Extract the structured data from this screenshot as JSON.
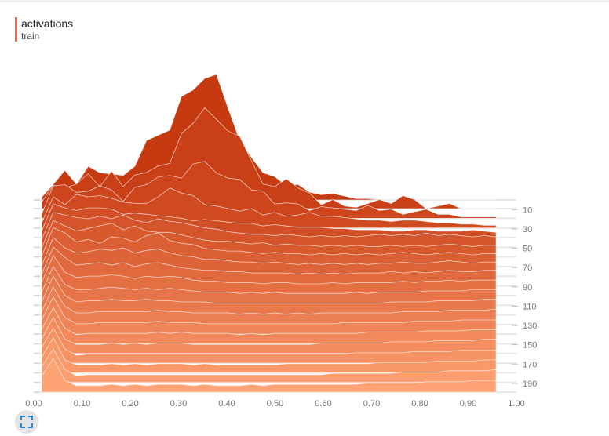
{
  "legend": {
    "title": "activations",
    "subtitle": "train"
  },
  "controls": {
    "fullscreen_icon": "fullscreen-icon"
  },
  "colors": {
    "legend_bar": "#f4623a",
    "front": "#ffa374",
    "back": "#c63a12",
    "axis_text": "#757575"
  },
  "chart_data": {
    "type": "area",
    "subtype": "histogram-offset",
    "x_ticks": [
      "0.00",
      "0.10",
      "0.20",
      "0.30",
      "0.40",
      "0.50",
      "0.60",
      "0.70",
      "0.80",
      "0.90",
      "1.00"
    ],
    "xlim": [
      0,
      1
    ],
    "step_ticks": [
      "10",
      "30",
      "50",
      "70",
      "90",
      "110",
      "130",
      "150",
      "170",
      "190"
    ],
    "step_range": [
      0,
      199
    ],
    "x": [
      0.0,
      0.025,
      0.05,
      0.075,
      0.1,
      0.125,
      0.15,
      0.175,
      0.2,
      0.225,
      0.25,
      0.275,
      0.3,
      0.325,
      0.35,
      0.375,
      0.4,
      0.425,
      0.45,
      0.475,
      0.5,
      0.525,
      0.55,
      0.575,
      0.6,
      0.625,
      0.65,
      0.675,
      0.7,
      0.725,
      0.75,
      0.775,
      0.8,
      0.825,
      0.85,
      0.875,
      0.9,
      0.925,
      0.95,
      0.975
    ],
    "series": [
      {
        "step": 0,
        "values": [
          0.02,
          0.12,
          0.23,
          0.12,
          0.26,
          0.21,
          0.2,
          0.19,
          0.26,
          0.46,
          0.5,
          0.54,
          0.8,
          0.85,
          0.94,
          0.97,
          0.71,
          0.46,
          0.33,
          0.21,
          0.18,
          0.11,
          0.12,
          0.06,
          0.04,
          0.05,
          0.03,
          0.01,
          0.01,
          0.0,
          0.0,
          0.0,
          0.0,
          0.0,
          0.0,
          0.0,
          0.0,
          0.0,
          0.0,
          0.0
        ]
      },
      {
        "step": 9,
        "values": [
          0.05,
          0.18,
          0.16,
          0.19,
          0.27,
          0.17,
          0.29,
          0.17,
          0.26,
          0.28,
          0.33,
          0.35,
          0.58,
          0.66,
          0.78,
          0.69,
          0.6,
          0.56,
          0.37,
          0.19,
          0.17,
          0.23,
          0.16,
          0.12,
          0.03,
          0.07,
          0.02,
          0.01,
          0.04,
          0.07,
          0.04,
          0.1,
          0.07,
          0.0,
          0.02,
          0.04,
          0.0,
          0.0,
          0.0,
          0.0
        ]
      },
      {
        "step": 19,
        "values": [
          0.03,
          0.25,
          0.26,
          0.2,
          0.21,
          0.25,
          0.22,
          0.13,
          0.24,
          0.26,
          0.32,
          0.33,
          0.31,
          0.42,
          0.44,
          0.35,
          0.31,
          0.3,
          0.22,
          0.21,
          0.11,
          0.12,
          0.11,
          0.06,
          0.09,
          0.08,
          0.07,
          0.06,
          0.1,
          0.06,
          0.07,
          0.03,
          0.05,
          0.07,
          0.03,
          0.03,
          0.01,
          0.01,
          0.01,
          0.01
        ]
      },
      {
        "step": 29,
        "values": [
          0.04,
          0.24,
          0.18,
          0.26,
          0.24,
          0.25,
          0.23,
          0.2,
          0.19,
          0.19,
          0.24,
          0.31,
          0.27,
          0.25,
          0.18,
          0.17,
          0.15,
          0.13,
          0.15,
          0.1,
          0.12,
          0.09,
          0.1,
          0.12,
          0.09,
          0.09,
          0.08,
          0.07,
          0.06,
          0.06,
          0.05,
          0.06,
          0.06,
          0.05,
          0.04,
          0.04,
          0.03,
          0.03,
          0.02,
          0.02
        ]
      },
      {
        "step": 39,
        "values": [
          0.05,
          0.26,
          0.23,
          0.21,
          0.23,
          0.23,
          0.22,
          0.18,
          0.19,
          0.18,
          0.17,
          0.16,
          0.15,
          0.13,
          0.14,
          0.13,
          0.12,
          0.11,
          0.11,
          0.09,
          0.1,
          0.09,
          0.08,
          0.08,
          0.08,
          0.07,
          0.07,
          0.06,
          0.06,
          0.06,
          0.05,
          0.05,
          0.06,
          0.06,
          0.05,
          0.05,
          0.05,
          0.06,
          0.05,
          0.04
        ]
      },
      {
        "step": 49,
        "values": [
          0.06,
          0.27,
          0.25,
          0.23,
          0.22,
          0.24,
          0.22,
          0.25,
          0.21,
          0.19,
          0.22,
          0.2,
          0.19,
          0.17,
          0.15,
          0.14,
          0.12,
          0.11,
          0.1,
          0.1,
          0.09,
          0.1,
          0.09,
          0.08,
          0.09,
          0.08,
          0.09,
          0.08,
          0.09,
          0.1,
          0.09,
          0.1,
          0.09,
          0.11,
          0.09,
          0.1,
          0.09,
          0.08,
          0.09,
          0.08
        ]
      },
      {
        "step": 59,
        "values": [
          0.07,
          0.28,
          0.24,
          0.2,
          0.22,
          0.24,
          0.26,
          0.21,
          0.24,
          0.2,
          0.19,
          0.19,
          0.17,
          0.15,
          0.13,
          0.12,
          0.12,
          0.11,
          0.1,
          0.11,
          0.09,
          0.1,
          0.09,
          0.09,
          0.08,
          0.09,
          0.08,
          0.09,
          0.08,
          0.08,
          0.09,
          0.08,
          0.09,
          0.08,
          0.09,
          0.1,
          0.09,
          0.08,
          0.09,
          0.09
        ]
      },
      {
        "step": 69,
        "values": [
          0.08,
          0.3,
          0.26,
          0.19,
          0.21,
          0.18,
          0.23,
          0.22,
          0.19,
          0.24,
          0.26,
          0.2,
          0.18,
          0.17,
          0.14,
          0.13,
          0.12,
          0.12,
          0.11,
          0.1,
          0.11,
          0.1,
          0.1,
          0.09,
          0.1,
          0.09,
          0.1,
          0.09,
          0.1,
          0.09,
          0.1,
          0.11,
          0.1,
          0.09,
          0.1,
          0.11,
          0.1,
          0.09,
          0.1,
          0.1
        ]
      },
      {
        "step": 79,
        "values": [
          0.08,
          0.3,
          0.22,
          0.18,
          0.19,
          0.21,
          0.2,
          0.22,
          0.18,
          0.2,
          0.21,
          0.18,
          0.16,
          0.15,
          0.13,
          0.13,
          0.12,
          0.11,
          0.11,
          0.1,
          0.11,
          0.1,
          0.09,
          0.1,
          0.09,
          0.1,
          0.09,
          0.1,
          0.09,
          0.1,
          0.1,
          0.11,
          0.1,
          0.1,
          0.11,
          0.12,
          0.11,
          0.1,
          0.11,
          0.11
        ]
      },
      {
        "step": 89,
        "values": [
          0.09,
          0.3,
          0.22,
          0.16,
          0.17,
          0.18,
          0.16,
          0.18,
          0.15,
          0.17,
          0.18,
          0.16,
          0.14,
          0.13,
          0.12,
          0.12,
          0.11,
          0.11,
          0.1,
          0.1,
          0.1,
          0.1,
          0.09,
          0.1,
          0.09,
          0.1,
          0.09,
          0.1,
          0.1,
          0.1,
          0.11,
          0.1,
          0.11,
          0.1,
          0.11,
          0.12,
          0.11,
          0.11,
          0.12,
          0.12
        ]
      },
      {
        "step": 99,
        "values": [
          0.1,
          0.31,
          0.18,
          0.14,
          0.15,
          0.15,
          0.16,
          0.15,
          0.13,
          0.15,
          0.14,
          0.15,
          0.14,
          0.12,
          0.11,
          0.11,
          0.1,
          0.1,
          0.1,
          0.09,
          0.1,
          0.1,
          0.09,
          0.09,
          0.09,
          0.1,
          0.09,
          0.1,
          0.1,
          0.1,
          0.1,
          0.11,
          0.1,
          0.11,
          0.11,
          0.12,
          0.11,
          0.12,
          0.12,
          0.12
        ]
      },
      {
        "step": 109,
        "values": [
          0.1,
          0.3,
          0.16,
          0.12,
          0.12,
          0.13,
          0.14,
          0.13,
          0.12,
          0.13,
          0.12,
          0.13,
          0.12,
          0.11,
          0.1,
          0.1,
          0.1,
          0.09,
          0.1,
          0.09,
          0.1,
          0.09,
          0.09,
          0.09,
          0.09,
          0.09,
          0.09,
          0.1,
          0.09,
          0.1,
          0.1,
          0.1,
          0.1,
          0.11,
          0.11,
          0.11,
          0.11,
          0.12,
          0.12,
          0.12
        ]
      },
      {
        "step": 119,
        "values": [
          0.1,
          0.3,
          0.15,
          0.1,
          0.11,
          0.11,
          0.12,
          0.11,
          0.11,
          0.12,
          0.11,
          0.11,
          0.1,
          0.1,
          0.1,
          0.09,
          0.09,
          0.09,
          0.09,
          0.09,
          0.09,
          0.09,
          0.09,
          0.09,
          0.09,
          0.09,
          0.09,
          0.09,
          0.09,
          0.09,
          0.1,
          0.1,
          0.1,
          0.1,
          0.11,
          0.11,
          0.11,
          0.11,
          0.12,
          0.12
        ]
      },
      {
        "step": 129,
        "values": [
          0.1,
          0.29,
          0.14,
          0.09,
          0.09,
          0.1,
          0.1,
          0.1,
          0.1,
          0.1,
          0.11,
          0.1,
          0.1,
          0.09,
          0.09,
          0.09,
          0.09,
          0.08,
          0.09,
          0.08,
          0.09,
          0.08,
          0.09,
          0.08,
          0.09,
          0.09,
          0.09,
          0.09,
          0.09,
          0.09,
          0.09,
          0.1,
          0.1,
          0.1,
          0.1,
          0.11,
          0.11,
          0.11,
          0.11,
          0.12
        ]
      },
      {
        "step": 139,
        "values": [
          0.11,
          0.29,
          0.13,
          0.08,
          0.08,
          0.09,
          0.09,
          0.09,
          0.09,
          0.09,
          0.1,
          0.09,
          0.09,
          0.09,
          0.08,
          0.08,
          0.08,
          0.08,
          0.08,
          0.08,
          0.08,
          0.08,
          0.08,
          0.08,
          0.08,
          0.08,
          0.09,
          0.09,
          0.09,
          0.09,
          0.09,
          0.09,
          0.1,
          0.1,
          0.1,
          0.1,
          0.11,
          0.11,
          0.11,
          0.11
        ]
      },
      {
        "step": 149,
        "values": [
          0.11,
          0.28,
          0.12,
          0.07,
          0.08,
          0.08,
          0.08,
          0.08,
          0.08,
          0.08,
          0.09,
          0.08,
          0.09,
          0.08,
          0.08,
          0.08,
          0.08,
          0.07,
          0.08,
          0.07,
          0.08,
          0.08,
          0.08,
          0.08,
          0.08,
          0.08,
          0.08,
          0.08,
          0.09,
          0.09,
          0.09,
          0.09,
          0.09,
          0.1,
          0.1,
          0.1,
          0.1,
          0.11,
          0.11,
          0.11
        ]
      },
      {
        "step": 159,
        "values": [
          0.11,
          0.28,
          0.11,
          0.07,
          0.07,
          0.07,
          0.08,
          0.07,
          0.08,
          0.07,
          0.08,
          0.08,
          0.08,
          0.07,
          0.07,
          0.07,
          0.07,
          0.07,
          0.07,
          0.07,
          0.07,
          0.07,
          0.07,
          0.07,
          0.08,
          0.08,
          0.08,
          0.08,
          0.08,
          0.08,
          0.09,
          0.09,
          0.09,
          0.09,
          0.1,
          0.1,
          0.1,
          0.1,
          0.11,
          0.11
        ]
      },
      {
        "step": 169,
        "values": [
          0.12,
          0.27,
          0.11,
          0.06,
          0.07,
          0.07,
          0.07,
          0.07,
          0.07,
          0.07,
          0.07,
          0.07,
          0.07,
          0.07,
          0.07,
          0.07,
          0.07,
          0.07,
          0.07,
          0.07,
          0.07,
          0.07,
          0.07,
          0.07,
          0.07,
          0.07,
          0.07,
          0.08,
          0.08,
          0.08,
          0.08,
          0.08,
          0.09,
          0.09,
          0.09,
          0.09,
          0.1,
          0.1,
          0.1,
          0.1
        ]
      },
      {
        "step": 179,
        "values": [
          0.12,
          0.27,
          0.1,
          0.06,
          0.06,
          0.06,
          0.07,
          0.06,
          0.07,
          0.06,
          0.07,
          0.07,
          0.07,
          0.06,
          0.07,
          0.06,
          0.06,
          0.06,
          0.06,
          0.06,
          0.06,
          0.07,
          0.07,
          0.07,
          0.07,
          0.07,
          0.07,
          0.07,
          0.07,
          0.08,
          0.08,
          0.08,
          0.08,
          0.08,
          0.09,
          0.09,
          0.09,
          0.09,
          0.1,
          0.1
        ]
      },
      {
        "step": 189,
        "values": [
          0.12,
          0.26,
          0.1,
          0.05,
          0.06,
          0.06,
          0.06,
          0.06,
          0.06,
          0.06,
          0.06,
          0.06,
          0.06,
          0.06,
          0.06,
          0.06,
          0.06,
          0.06,
          0.06,
          0.06,
          0.06,
          0.06,
          0.06,
          0.06,
          0.06,
          0.07,
          0.07,
          0.07,
          0.07,
          0.07,
          0.07,
          0.08,
          0.08,
          0.08,
          0.08,
          0.09,
          0.09,
          0.09,
          0.09,
          0.1
        ]
      },
      {
        "step": 199,
        "values": [
          0.12,
          0.26,
          0.09,
          0.05,
          0.05,
          0.05,
          0.06,
          0.05,
          0.06,
          0.05,
          0.06,
          0.06,
          0.06,
          0.05,
          0.06,
          0.05,
          0.05,
          0.05,
          0.06,
          0.05,
          0.06,
          0.06,
          0.06,
          0.06,
          0.06,
          0.06,
          0.06,
          0.06,
          0.07,
          0.07,
          0.07,
          0.07,
          0.07,
          0.08,
          0.08,
          0.08,
          0.08,
          0.09,
          0.09,
          0.09
        ]
      }
    ]
  }
}
